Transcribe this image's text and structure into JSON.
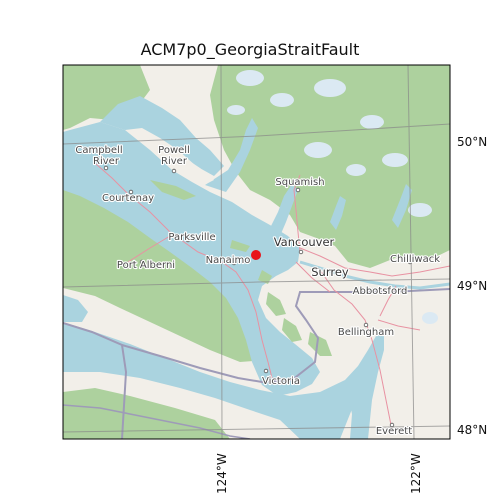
{
  "title": "ACM7p0_GeorgiaStraitFault",
  "lat_labels": [
    "50°N",
    "49°N",
    "48°N"
  ],
  "lon_labels": [
    "124°W",
    "122°W"
  ],
  "places": {
    "campbell_river_1": "Campbell",
    "campbell_river_2": "River",
    "powell_river_1": "Powell",
    "powell_river_2": "River",
    "courtenay": "Courtenay",
    "parksville": "Parksville",
    "port_alberni": "Port Alberni",
    "nanaimo": "Nanaimo",
    "squamish": "Squamish",
    "vancouver": "Vancouver",
    "surrey": "Surrey",
    "chilliwack": "Chilliwack",
    "abbotsford": "Abbotsford",
    "bellingham": "Bellingham",
    "victoria": "Victoria",
    "everett": "Everett"
  },
  "marker": {
    "name": "ACM7p0_GeorgiaStraitFault",
    "color": "#e8141a"
  },
  "colors": {
    "water": "#aad3df",
    "land": "#f2efe9",
    "forest": "#add19e",
    "glacier": "#dbe9f3",
    "border": "#9e9bb8",
    "road": "#e892a2",
    "grid": "#888888"
  }
}
